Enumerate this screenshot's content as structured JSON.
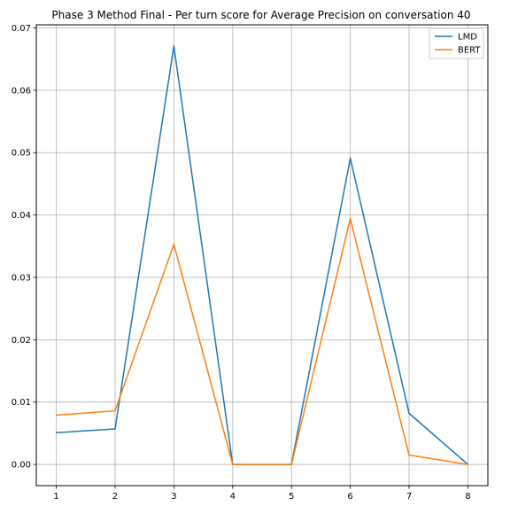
{
  "chart_data": {
    "type": "line",
    "title": "Phase 3 Method Final - Per turn score for Average Precision on conversation 40",
    "xlabel": "",
    "ylabel": "",
    "x": [
      1,
      2,
      3,
      4,
      5,
      6,
      7,
      8
    ],
    "xticks": [
      "1",
      "2",
      "3",
      "4",
      "5",
      "6",
      "7",
      "8"
    ],
    "yticks": [
      "0.00",
      "0.01",
      "0.02",
      "0.03",
      "0.04",
      "0.05",
      "0.06",
      "0.07"
    ],
    "xlim": [
      0.66,
      8.34
    ],
    "ylim": [
      -0.0034,
      0.0705
    ],
    "grid": true,
    "legend_position": "top-right",
    "series": [
      {
        "name": "LMD",
        "color": "#1f77b4",
        "values": [
          0.0051,
          0.0057,
          0.0671,
          0.0,
          0.0,
          0.0491,
          0.0082,
          0.0
        ]
      },
      {
        "name": "BERT",
        "color": "#ff7f0e",
        "values": [
          0.0079,
          0.0086,
          0.0353,
          0.0,
          0.0,
          0.0394,
          0.0015,
          0.0
        ]
      }
    ]
  }
}
